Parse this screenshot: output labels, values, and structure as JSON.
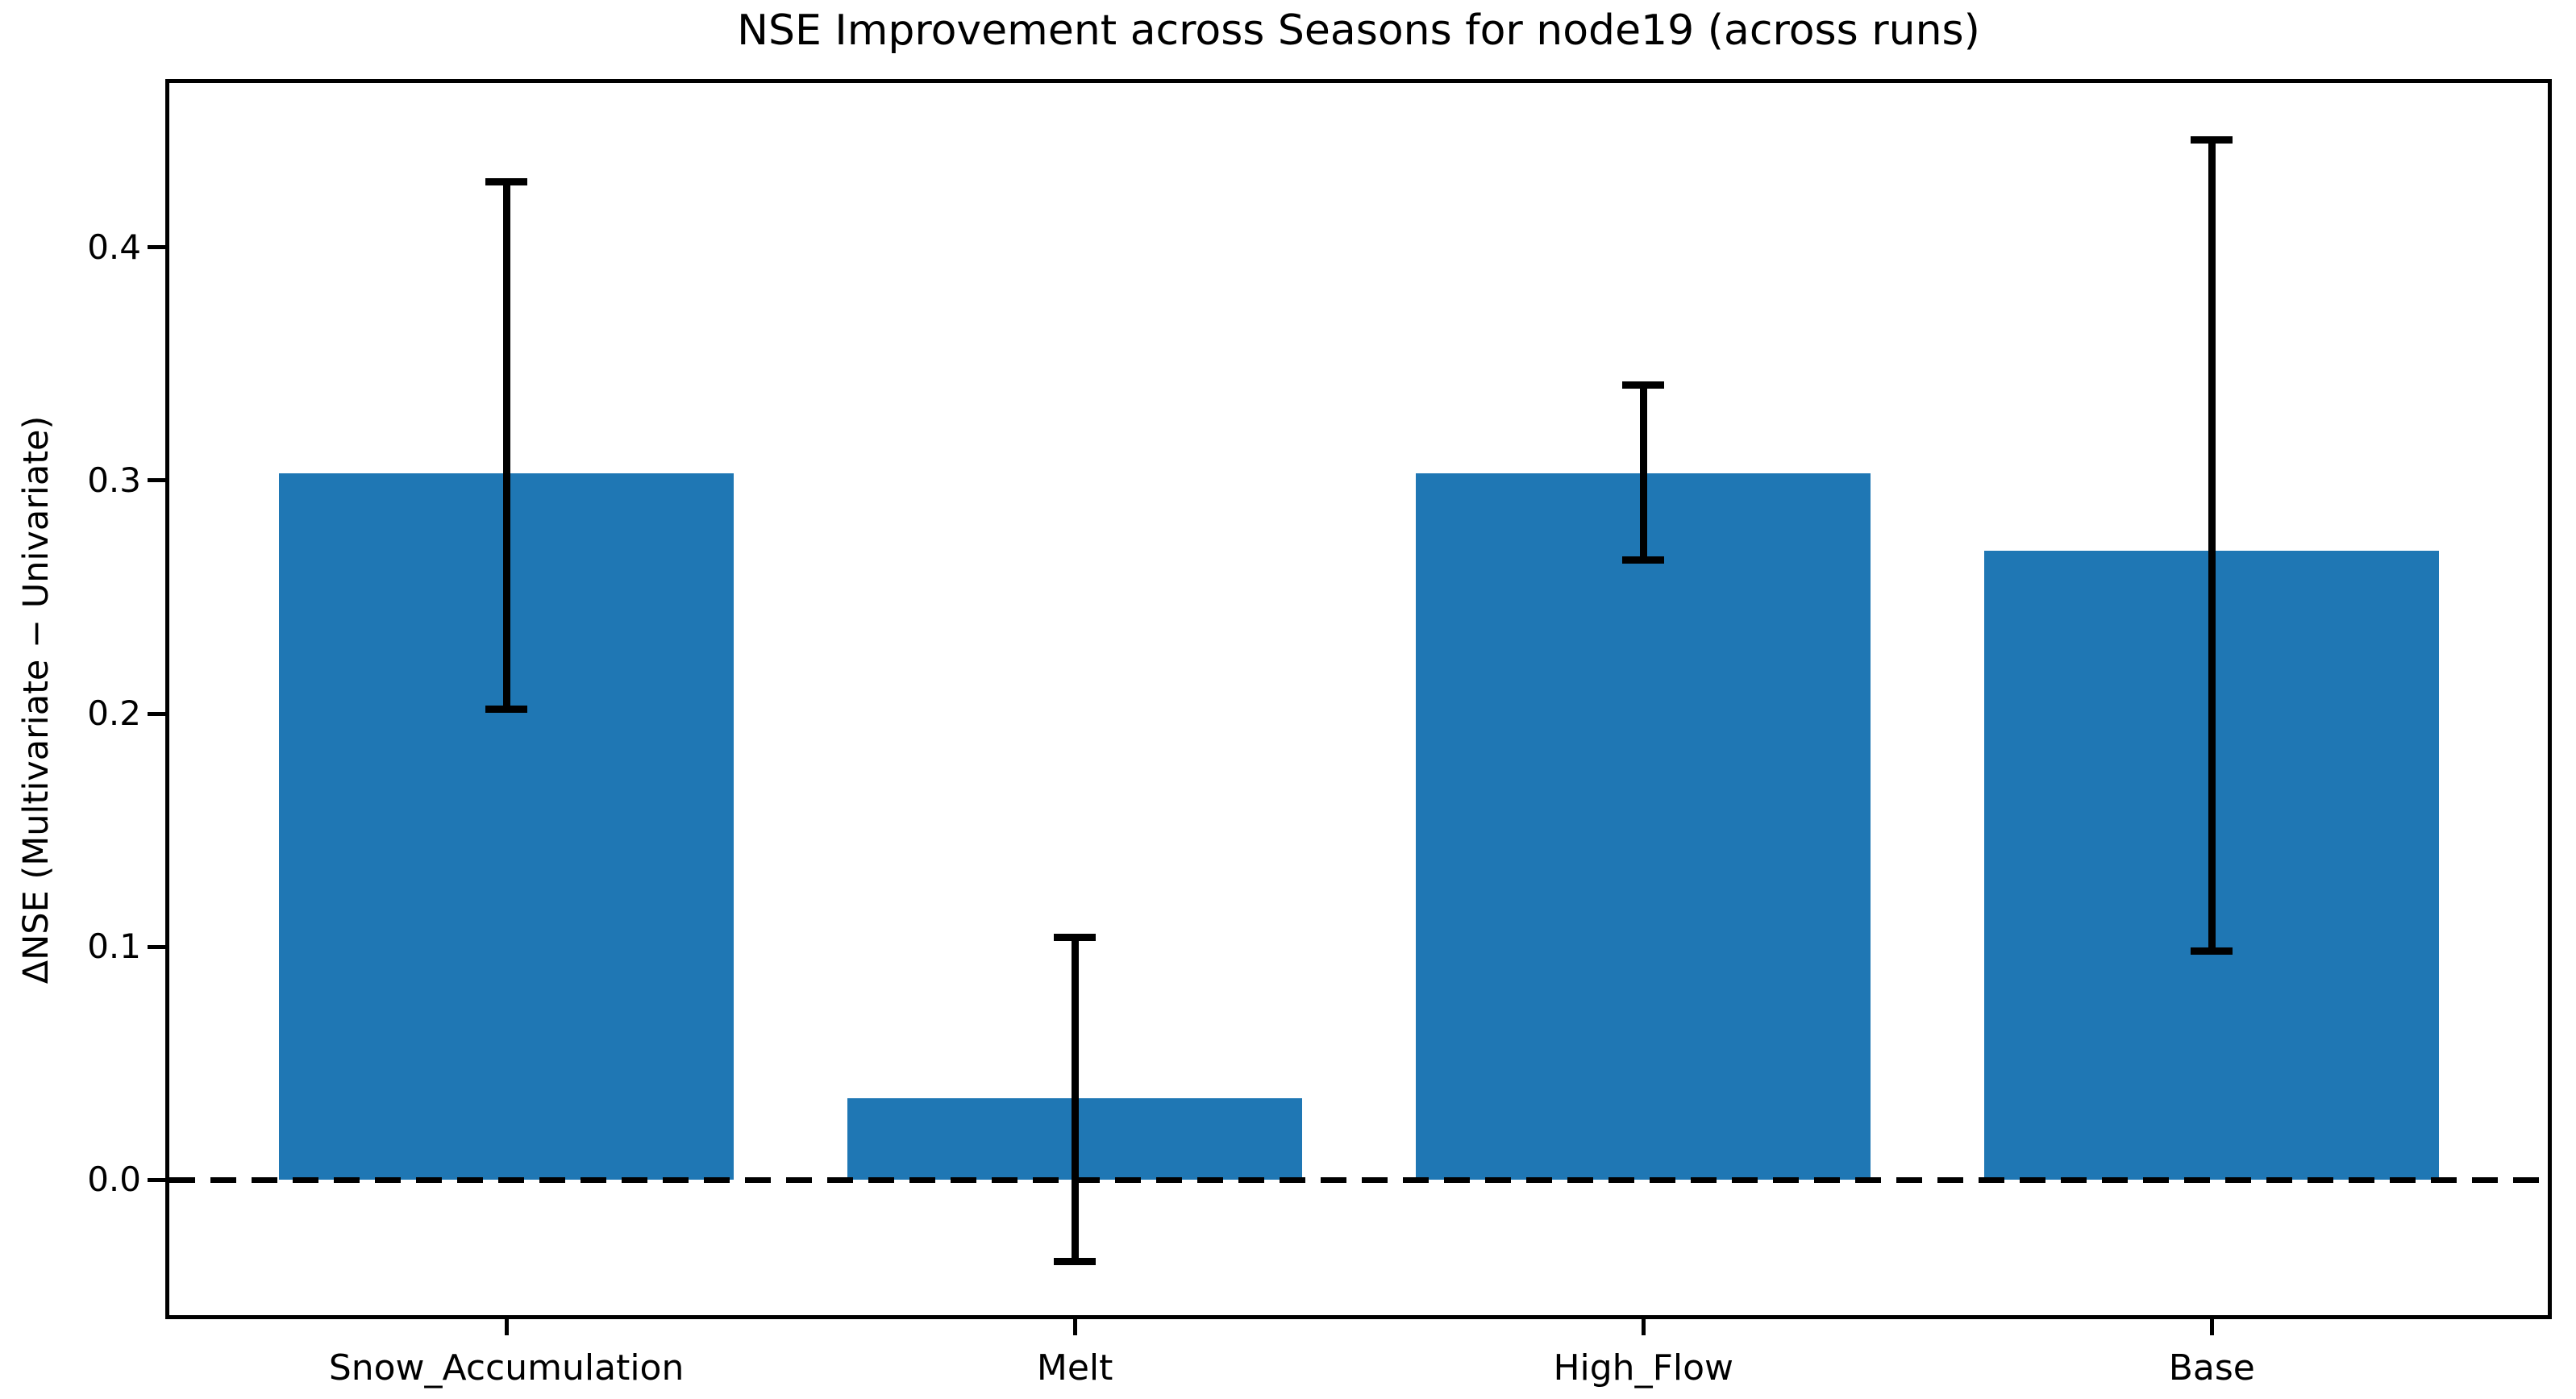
{
  "chart_data": {
    "type": "bar",
    "title": "NSE Improvement across Seasons for node19 (across runs)",
    "ylabel": "ΔNSE (Multivariate − Univariate)",
    "xlabel": "",
    "categories": [
      "Snow_Accumulation",
      "Melt",
      "High_Flow",
      "Base"
    ],
    "values": [
      0.303,
      0.035,
      0.303,
      0.27
    ],
    "error_top": [
      0.428,
      0.104,
      0.341,
      0.446
    ],
    "error_bottom": [
      0.202,
      -0.035,
      0.266,
      0.098
    ],
    "yticks": [
      0.0,
      0.1,
      0.2,
      0.3,
      0.4
    ],
    "ytick_labels": [
      "0.0",
      "0.1",
      "0.2",
      "0.3",
      "0.4"
    ],
    "ylim": [
      -0.058,
      0.4705
    ],
    "xlim": [
      -0.593,
      3.591
    ],
    "bar_width": 0.8,
    "bar_color": "#1f77b4",
    "error_color": "#000000",
    "zero_line": {
      "y": 0.0,
      "style": "dashed",
      "color": "#000000"
    },
    "grid": false,
    "legend": null
  }
}
